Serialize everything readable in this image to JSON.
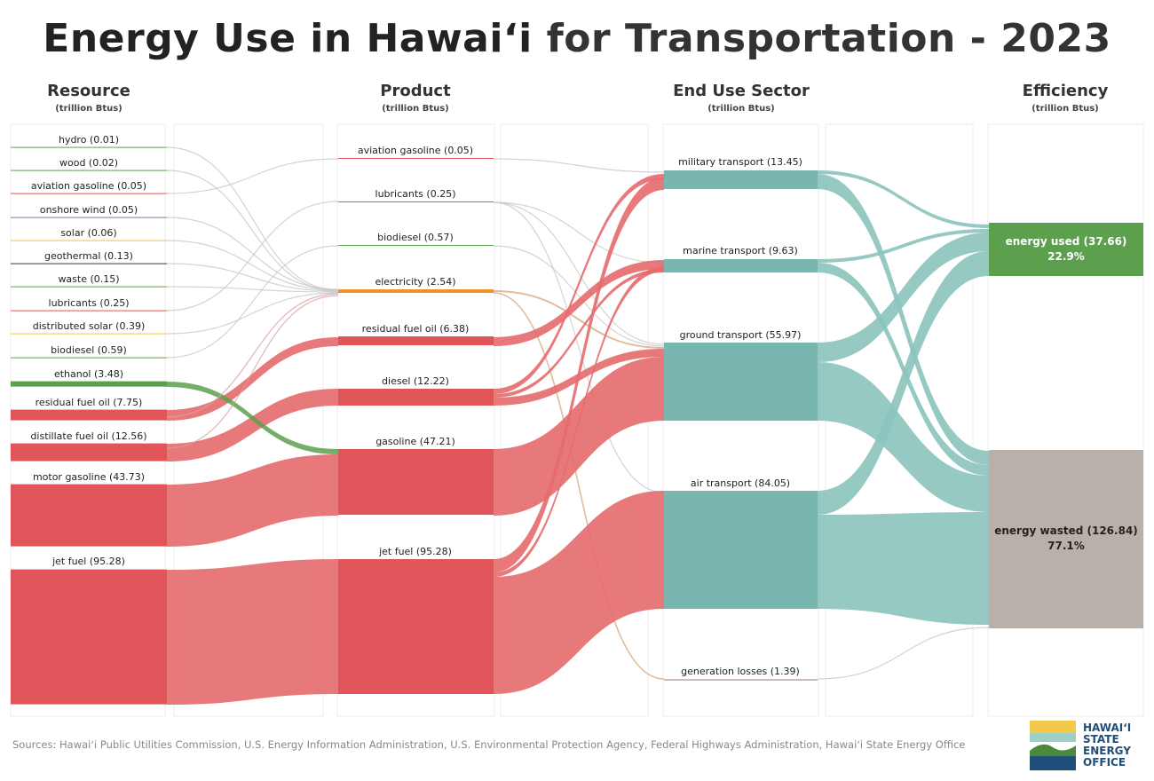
{
  "title_part1": "Energy Use in Hawaiʻi",
  "title_part2": "for Transportation - 2023",
  "columns": [
    {
      "heading": "Resource",
      "unit": "(trillion Btus)"
    },
    {
      "heading": "Product",
      "unit": "(trillion Btus)"
    },
    {
      "heading": "End Use Sector",
      "unit": "(trillion Btus)"
    },
    {
      "heading": "Efficiency",
      "unit": "(trillion Btus)"
    }
  ],
  "colors": {
    "red": "#e0555a",
    "redflow": "#e56a6d",
    "green": "#5ca04e",
    "teal": "#7ab6b0",
    "tealflow": "#8cc3bd",
    "gray": "#b9b0aa",
    "orange": "#f0922a",
    "yellow": "#e6c84a",
    "navy": "#1f3b5a",
    "purple": "#8e6fa8",
    "tan": "#d4a070"
  },
  "chart_data": {
    "type": "sankey",
    "unit": "trillion Btus",
    "resources": [
      {
        "label": "hydro",
        "value": "(0.01)"
      },
      {
        "label": "wood",
        "value": "(0.02)"
      },
      {
        "label": "aviation gasoline",
        "value": "(0.05)"
      },
      {
        "label": "onshore wind",
        "value": "(0.05)"
      },
      {
        "label": "solar",
        "value": "(0.06)"
      },
      {
        "label": "geothermal",
        "value": "(0.13)"
      },
      {
        "label": "waste",
        "value": "(0.15)"
      },
      {
        "label": "lubricants",
        "value": "(0.25)"
      },
      {
        "label": "distributed solar",
        "value": "(0.39)"
      },
      {
        "label": "biodiesel",
        "value": "(0.59)"
      },
      {
        "label": "ethanol",
        "value": "(3.48)"
      },
      {
        "label": "residual fuel oil",
        "value": "(7.75)"
      },
      {
        "label": "distillate fuel oil",
        "value": "(12.56)"
      },
      {
        "label": "motor gasoline",
        "value": "(43.73)"
      },
      {
        "label": "jet fuel",
        "value": "(95.28)"
      }
    ],
    "products": [
      {
        "label": "aviation gasoline",
        "value": "(0.05)"
      },
      {
        "label": "lubricants",
        "value": "(0.25)"
      },
      {
        "label": "biodiesel",
        "value": "(0.57)"
      },
      {
        "label": "electricity",
        "value": "(2.54)"
      },
      {
        "label": "residual fuel oil",
        "value": "(6.38)"
      },
      {
        "label": "diesel",
        "value": "(12.22)"
      },
      {
        "label": "gasoline",
        "value": "(47.21)"
      },
      {
        "label": "jet fuel",
        "value": "(95.28)"
      }
    ],
    "end_uses": [
      {
        "label": "military transport",
        "value": "(13.45)"
      },
      {
        "label": "marine transport",
        "value": "(9.63)"
      },
      {
        "label": "ground transport",
        "value": "(55.97)"
      },
      {
        "label": "air transport",
        "value": "(84.05)"
      },
      {
        "label": "generation losses",
        "value": "(1.39)"
      }
    ],
    "efficiency": [
      {
        "label": "energy used (37.66)",
        "percent": "22.9%"
      },
      {
        "label": "energy wasted (126.84)",
        "percent": "77.1%"
      }
    ]
  },
  "sources": "Sources: Hawaiʻi Public Utilities Commission, U.S. Energy Information Administration, U.S. Environmental Protection Agency, Federal Highways Administration, Hawaiʻi State Energy Office",
  "logo": {
    "line1": "HAWAIʻI",
    "line2": "STATE",
    "line3": "ENERGY",
    "line4": "OFFICE"
  }
}
